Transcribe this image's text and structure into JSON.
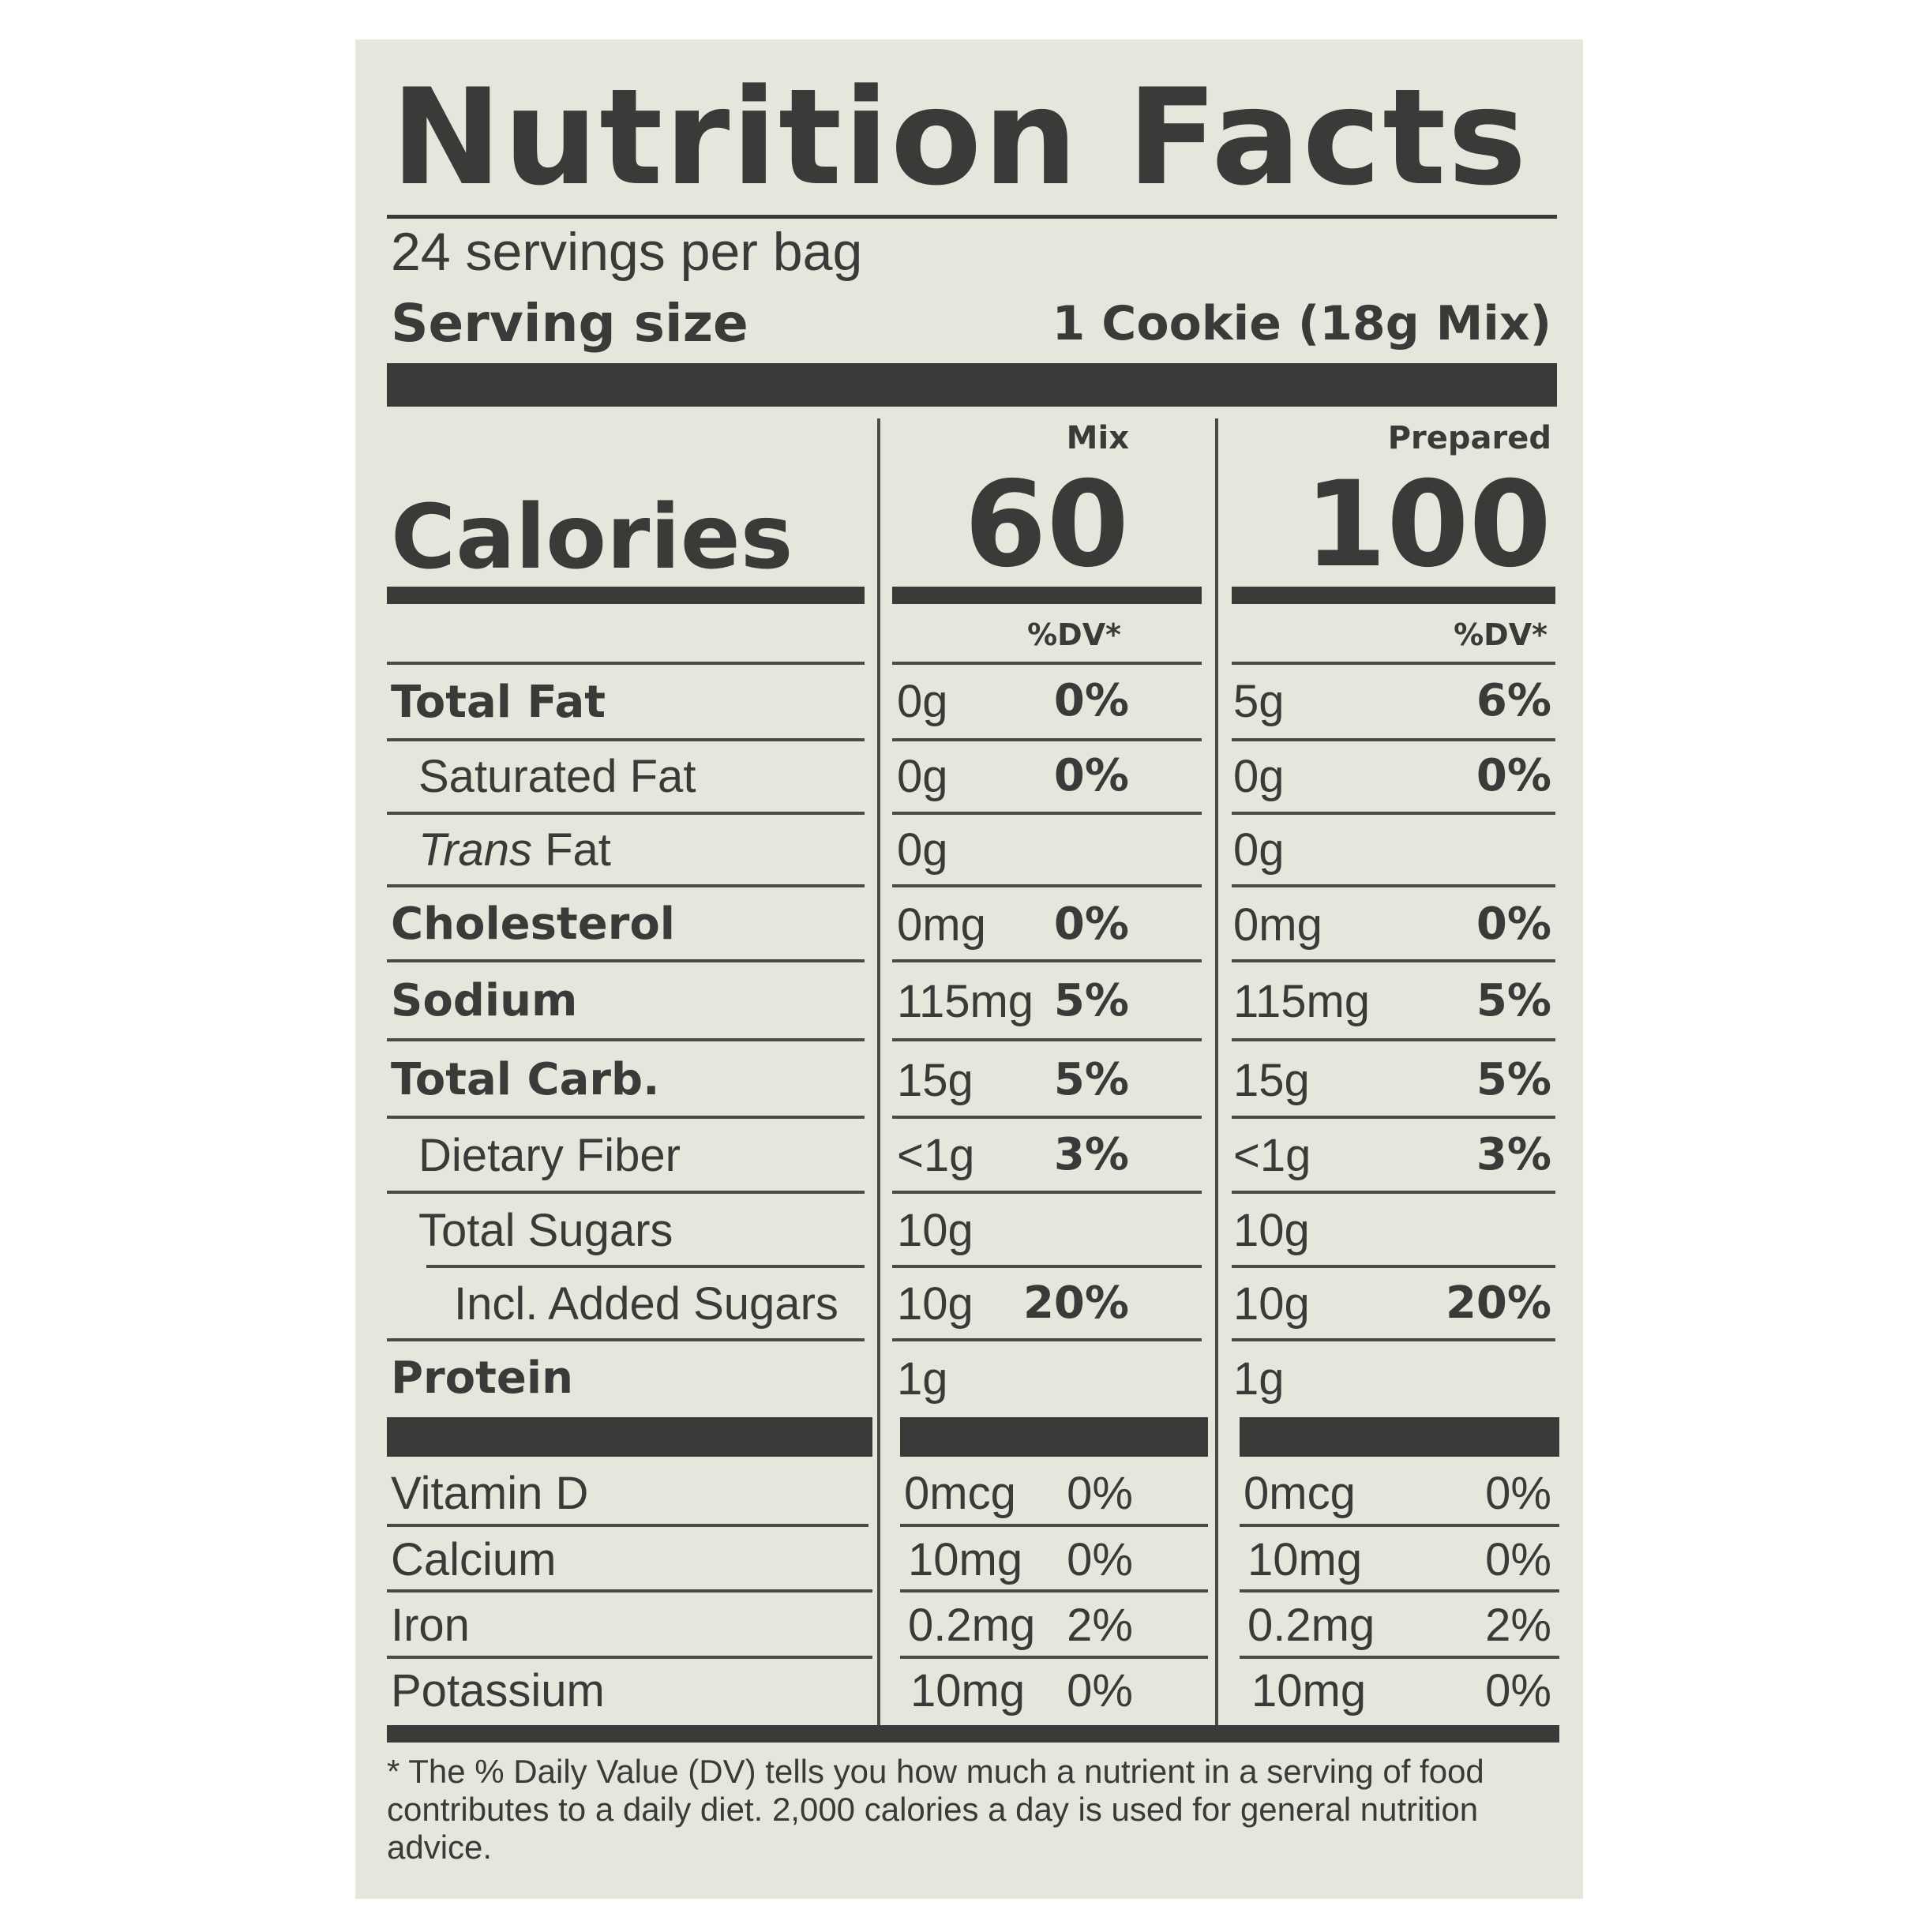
{
  "title": "Nutrition Facts",
  "servings_per_container": "24 servings per bag",
  "serving_size_label": "Serving size",
  "serving_size_value": "1 Cookie (18g Mix)",
  "columns": {
    "mix": "Mix",
    "prepared": "Prepared"
  },
  "calories": {
    "label": "Calories",
    "mix": "60",
    "prepared": "100"
  },
  "dv_header": "%DV*",
  "nutrients": [
    {
      "label": "Total Fat",
      "mix_amount": "0g",
      "mix_dv": "0%",
      "prep_amount": "5g",
      "prep_dv": "6%"
    },
    {
      "label": "Saturated Fat",
      "mix_amount": "0g",
      "mix_dv": "0%",
      "prep_amount": "0g",
      "prep_dv": "0%"
    },
    {
      "label_italic": "Trans",
      "label_rest": " Fat",
      "mix_amount": "0g",
      "prep_amount": "0g"
    },
    {
      "label": "Cholesterol",
      "mix_amount": "0mg",
      "mix_dv": "0%",
      "prep_amount": "0mg",
      "prep_dv": "0%"
    },
    {
      "label": "Sodium",
      "mix_amount": "115mg",
      "mix_dv": "5%",
      "prep_amount": "115mg",
      "prep_dv": "5%"
    },
    {
      "label": "Total Carb.",
      "mix_amount": "15g",
      "mix_dv": "5%",
      "prep_amount": "15g",
      "prep_dv": "5%"
    },
    {
      "label": "Dietary Fiber",
      "mix_amount": "<1g",
      "mix_dv": "3%",
      "prep_amount": "<1g",
      "prep_dv": "3%"
    },
    {
      "label": "Total Sugars",
      "mix_amount": "10g",
      "prep_amount": "10g"
    },
    {
      "label": "Incl. Added Sugars",
      "mix_amount": "10g",
      "mix_dv": "20%",
      "prep_amount": "10g",
      "prep_dv": "20%"
    },
    {
      "label": "Protein",
      "mix_amount": "1g",
      "prep_amount": "1g"
    }
  ],
  "vitamins": [
    {
      "label": "Vitamin D",
      "mix_amount": "0mcg",
      "mix_dv": "0%",
      "prep_amount": "0mcg",
      "prep_dv": "0%"
    },
    {
      "label": "Calcium",
      "mix_amount": "10mg",
      "mix_dv": "0%",
      "prep_amount": "10mg",
      "prep_dv": "0%"
    },
    {
      "label": "Iron",
      "mix_amount": "0.2mg",
      "mix_dv": "2%",
      "prep_amount": "0.2mg",
      "prep_dv": "2%"
    },
    {
      "label": "Potassium",
      "mix_amount": "10mg",
      "mix_dv": "0%",
      "prep_amount": "10mg",
      "prep_dv": "0%"
    }
  ],
  "footnote": "* The % Daily Value (DV) tells you how much a nutrient in a serving of food contributes to a daily diet. 2,000 calories a day is used for general nutrition advice.",
  "colors": {
    "label_background": "#e4e7dc",
    "ink": "#3a3a38",
    "page_background": "#ffffff"
  }
}
